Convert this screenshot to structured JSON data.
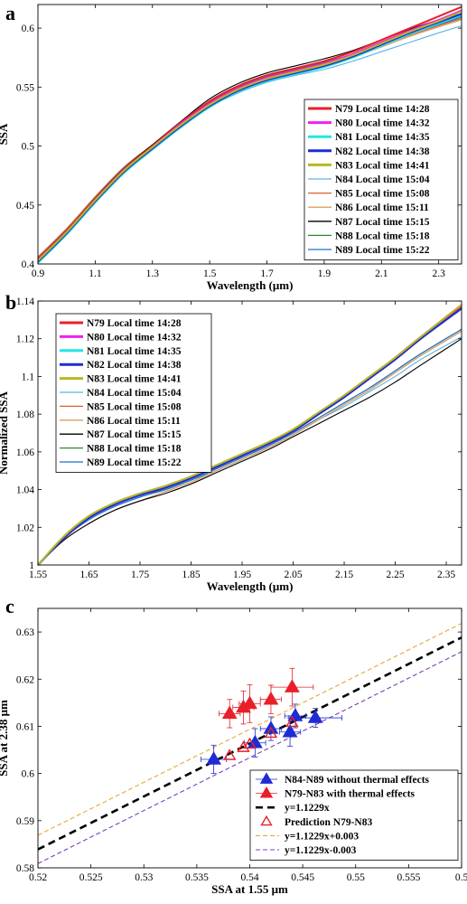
{
  "chart_data": [
    {
      "panel": "a",
      "type": "line",
      "xlabel": "Wavelength (μm)",
      "ylabel": "SSA",
      "xlim": [
        0.9,
        2.38
      ],
      "ylim": [
        0.4,
        0.62
      ],
      "xticks": [
        "0.9",
        "1.1",
        "1.3",
        "1.5",
        "1.7",
        "1.9",
        "2.1",
        "2.3"
      ],
      "yticks": [
        "0.4",
        "0.45",
        "0.5",
        "0.55",
        "0.6"
      ],
      "legend_position": "bottom-right",
      "x": [
        0.9,
        1.0,
        1.1,
        1.2,
        1.3,
        1.4,
        1.5,
        1.6,
        1.7,
        1.8,
        1.9,
        2.0,
        2.1,
        2.2,
        2.3,
        2.38
      ],
      "series": [
        {
          "name": "N79 Local time 14:28",
          "color": "#e8202a",
          "width": 3,
          "values": [
            0.404,
            0.428,
            0.455,
            0.48,
            0.5,
            0.52,
            0.538,
            0.551,
            0.56,
            0.566,
            0.572,
            0.58,
            0.59,
            0.6,
            0.61,
            0.618
          ]
        },
        {
          "name": "N80 Local time 14:32",
          "color": "#ee22ee",
          "width": 3,
          "values": [
            0.403,
            0.427,
            0.454,
            0.479,
            0.499,
            0.519,
            0.536,
            0.549,
            0.558,
            0.564,
            0.57,
            0.578,
            0.588,
            0.598,
            0.607,
            0.615
          ]
        },
        {
          "name": "N81 Local time 14:35",
          "color": "#22e6e6",
          "width": 3,
          "values": [
            0.401,
            0.425,
            0.452,
            0.477,
            0.497,
            0.516,
            0.533,
            0.546,
            0.555,
            0.561,
            0.567,
            0.575,
            0.585,
            0.595,
            0.604,
            0.611
          ]
        },
        {
          "name": "N82 Local time 14:38",
          "color": "#1f2bd4",
          "width": 3,
          "values": [
            0.402,
            0.426,
            0.453,
            0.478,
            0.498,
            0.517,
            0.534,
            0.547,
            0.556,
            0.562,
            0.568,
            0.576,
            0.586,
            0.596,
            0.605,
            0.612
          ]
        },
        {
          "name": "N83 Local time 14:41",
          "color": "#b8b820",
          "width": 3,
          "values": [
            0.403,
            0.427,
            0.454,
            0.479,
            0.499,
            0.518,
            0.535,
            0.548,
            0.557,
            0.563,
            0.569,
            0.577,
            0.587,
            0.597,
            0.606,
            0.614
          ]
        },
        {
          "name": "N84 Local time 15:04",
          "color": "#5ab4e6",
          "width": 1.3,
          "values": [
            0.404,
            0.428,
            0.455,
            0.48,
            0.499,
            0.517,
            0.533,
            0.545,
            0.554,
            0.56,
            0.565,
            0.572,
            0.58,
            0.588,
            0.596,
            0.602
          ]
        },
        {
          "name": "N85 Local time 15:08",
          "color": "#d9622a",
          "width": 1.3,
          "values": [
            0.406,
            0.43,
            0.457,
            0.482,
            0.501,
            0.519,
            0.536,
            0.548,
            0.557,
            0.563,
            0.569,
            0.576,
            0.585,
            0.594,
            0.602,
            0.608
          ]
        },
        {
          "name": "N86 Local time 15:11",
          "color": "#d9a066",
          "width": 1.3,
          "values": [
            0.405,
            0.429,
            0.456,
            0.481,
            0.5,
            0.518,
            0.535,
            0.547,
            0.556,
            0.562,
            0.568,
            0.575,
            0.584,
            0.593,
            0.601,
            0.607
          ]
        },
        {
          "name": "N87 Local time 15:15",
          "color": "#000000",
          "width": 1.3,
          "values": [
            0.403,
            0.428,
            0.456,
            0.481,
            0.501,
            0.521,
            0.54,
            0.553,
            0.562,
            0.568,
            0.574,
            0.581,
            0.59,
            0.599,
            0.607,
            0.612
          ]
        },
        {
          "name": "N88 Local time 15:18",
          "color": "#2e8b2e",
          "width": 1.3,
          "values": [
            0.404,
            0.428,
            0.455,
            0.48,
            0.5,
            0.519,
            0.537,
            0.55,
            0.559,
            0.565,
            0.571,
            0.578,
            0.587,
            0.596,
            0.604,
            0.61
          ]
        },
        {
          "name": "N89 Local time 15:22",
          "color": "#1f6fcc",
          "width": 1.3,
          "values": [
            0.405,
            0.429,
            0.456,
            0.481,
            0.5,
            0.518,
            0.535,
            0.548,
            0.557,
            0.563,
            0.569,
            0.577,
            0.586,
            0.595,
            0.603,
            0.609
          ]
        }
      ]
    },
    {
      "panel": "b",
      "type": "line",
      "xlabel": "Wavelength (μm)",
      "ylabel": "Normalized SSA",
      "xlim": [
        1.55,
        2.38
      ],
      "ylim": [
        1.0,
        1.14
      ],
      "xticks": [
        "1.55",
        "1.65",
        "1.75",
        "1.85",
        "1.95",
        "2.05",
        "2.15",
        "2.25",
        "2.35"
      ],
      "yticks": [
        "1",
        "1.02",
        "1.04",
        "1.06",
        "1.08",
        "1.1",
        "1.12",
        "1.14"
      ],
      "legend_position": "top-left",
      "x": [
        1.55,
        1.6,
        1.65,
        1.7,
        1.75,
        1.8,
        1.85,
        1.9,
        1.95,
        2.0,
        2.05,
        2.1,
        2.15,
        2.2,
        2.25,
        2.3,
        2.38
      ],
      "series": [
        {
          "name": "N79 Local time 14:28",
          "color": "#e8202a",
          "width": 3,
          "values": [
            1.0,
            1.014,
            1.025,
            1.032,
            1.037,
            1.041,
            1.046,
            1.052,
            1.058,
            1.064,
            1.071,
            1.08,
            1.089,
            1.099,
            1.109,
            1.12,
            1.137
          ]
        },
        {
          "name": "N80 Local time 14:32",
          "color": "#ee22ee",
          "width": 3,
          "values": [
            1.0,
            1.014,
            1.025,
            1.032,
            1.037,
            1.041,
            1.046,
            1.052,
            1.058,
            1.064,
            1.071,
            1.08,
            1.089,
            1.099,
            1.11,
            1.121,
            1.138
          ]
        },
        {
          "name": "N81 Local time 14:35",
          "color": "#22e6e6",
          "width": 3,
          "values": [
            1.0,
            1.014,
            1.025,
            1.032,
            1.037,
            1.041,
            1.046,
            1.052,
            1.058,
            1.064,
            1.071,
            1.08,
            1.089,
            1.099,
            1.109,
            1.12,
            1.136
          ]
        },
        {
          "name": "N82 Local time 14:38",
          "color": "#1f2bd4",
          "width": 3,
          "values": [
            1.0,
            1.014,
            1.025,
            1.032,
            1.037,
            1.041,
            1.046,
            1.052,
            1.058,
            1.064,
            1.071,
            1.08,
            1.089,
            1.099,
            1.109,
            1.12,
            1.136
          ]
        },
        {
          "name": "N83 Local time 14:41",
          "color": "#b8b820",
          "width": 3,
          "values": [
            1.0,
            1.015,
            1.026,
            1.033,
            1.038,
            1.042,
            1.047,
            1.053,
            1.059,
            1.065,
            1.072,
            1.081,
            1.09,
            1.1,
            1.11,
            1.121,
            1.138
          ]
        },
        {
          "name": "N84 Local time 15:04",
          "color": "#5ab4e6",
          "width": 1.3,
          "values": [
            1.0,
            1.014,
            1.024,
            1.031,
            1.036,
            1.04,
            1.045,
            1.05,
            1.056,
            1.062,
            1.069,
            1.077,
            1.084,
            1.092,
            1.1,
            1.109,
            1.121
          ]
        },
        {
          "name": "N85 Local time 15:08",
          "color": "#d9622a",
          "width": 1.3,
          "values": [
            1.0,
            1.013,
            1.022,
            1.029,
            1.034,
            1.039,
            1.044,
            1.05,
            1.056,
            1.062,
            1.069,
            1.077,
            1.085,
            1.093,
            1.102,
            1.111,
            1.124
          ]
        },
        {
          "name": "N86 Local time 15:11",
          "color": "#d9a066",
          "width": 1.3,
          "values": [
            1.0,
            1.013,
            1.022,
            1.029,
            1.034,
            1.039,
            1.044,
            1.05,
            1.056,
            1.062,
            1.069,
            1.077,
            1.085,
            1.093,
            1.102,
            1.111,
            1.124
          ]
        },
        {
          "name": "N87 Local time 15:15",
          "color": "#000000",
          "width": 1.3,
          "values": [
            1.0,
            1.013,
            1.022,
            1.029,
            1.034,
            1.038,
            1.043,
            1.049,
            1.055,
            1.061,
            1.068,
            1.075,
            1.082,
            1.089,
            1.097,
            1.106,
            1.12
          ]
        },
        {
          "name": "N88 Local time 15:18",
          "color": "#2e8b2e",
          "width": 1.3,
          "values": [
            1.0,
            1.014,
            1.025,
            1.032,
            1.037,
            1.04,
            1.045,
            1.051,
            1.057,
            1.063,
            1.07,
            1.078,
            1.086,
            1.094,
            1.103,
            1.112,
            1.125
          ]
        },
        {
          "name": "N89 Local time 15:22",
          "color": "#1f6fcc",
          "width": 1.3,
          "values": [
            1.0,
            1.014,
            1.024,
            1.031,
            1.036,
            1.04,
            1.045,
            1.051,
            1.057,
            1.063,
            1.07,
            1.078,
            1.086,
            1.094,
            1.103,
            1.112,
            1.125
          ]
        }
      ]
    },
    {
      "panel": "c",
      "type": "scatter",
      "xlabel": "SSA at 1.55 μm",
      "ylabel": "SSA at 2.38 μm",
      "xlim": [
        0.52,
        0.56
      ],
      "ylim": [
        0.58,
        0.635
      ],
      "xticks": [
        "0.52",
        "0.525",
        "0.53",
        "0.535",
        "0.54",
        "0.545",
        "0.55",
        "0.555",
        "0.5"
      ],
      "yticks": [
        "0.58",
        "0.59",
        "0.6",
        "0.61",
        "0.62",
        "0.63"
      ],
      "legend_position": "bottom-right",
      "scatter_series": [
        {
          "name": "N84-N89 without thermal effects",
          "marker": "filled-triangle",
          "color": "#1f2bd4",
          "points": [
            {
              "x": 0.5366,
              "y": 0.603,
              "xerr": 0.0012,
              "yerr": 0.003
            },
            {
              "x": 0.5405,
              "y": 0.6065,
              "xerr": 0.001,
              "yerr": 0.003
            },
            {
              "x": 0.542,
              "y": 0.6095,
              "xerr": 0.001,
              "yerr": 0.0025
            },
            {
              "x": 0.5438,
              "y": 0.6088,
              "xerr": 0.001,
              "yerr": 0.003
            },
            {
              "x": 0.5443,
              "y": 0.6122,
              "xerr": 0.001,
              "yerr": 0.0025
            },
            {
              "x": 0.5462,
              "y": 0.6118,
              "xerr": 0.0025,
              "yerr": 0.002
            }
          ]
        },
        {
          "name": "N79-N83 with thermal effects",
          "marker": "filled-triangle",
          "color": "#e8202a",
          "points": [
            {
              "x": 0.5381,
              "y": 0.6127,
              "xerr": 0.001,
              "yerr": 0.003
            },
            {
              "x": 0.5394,
              "y": 0.614,
              "xerr": 0.001,
              "yerr": 0.0035
            },
            {
              "x": 0.54,
              "y": 0.6148,
              "xerr": 0.001,
              "yerr": 0.004
            },
            {
              "x": 0.542,
              "y": 0.6157,
              "xerr": 0.001,
              "yerr": 0.003
            },
            {
              "x": 0.544,
              "y": 0.6183,
              "xerr": 0.002,
              "yerr": 0.004
            }
          ]
        },
        {
          "name": "Prediction N79-N83",
          "marker": "open-triangle",
          "color": "#e8202a",
          "points": [
            {
              "x": 0.5381,
              "y": 0.6038
            },
            {
              "x": 0.5394,
              "y": 0.6055
            },
            {
              "x": 0.54,
              "y": 0.6062
            },
            {
              "x": 0.542,
              "y": 0.6085
            },
            {
              "x": 0.544,
              "y": 0.6108
            }
          ]
        }
      ],
      "lines": [
        {
          "name": "y=1.1229x",
          "color": "#000000",
          "style": "bold-dashed",
          "slope": 1.1229,
          "intercept": 0
        },
        {
          "name": "y=1.1229x+0.003",
          "color": "#e8a838",
          "style": "dashed",
          "slope": 1.1229,
          "intercept": 0.003
        },
        {
          "name": "y=1.1229x-0.003",
          "color": "#7a3fb5",
          "style": "dashed",
          "slope": 1.1229,
          "intercept": -0.003
        }
      ],
      "legend_order": [
        "N84-N89 without thermal effects",
        "N79-N83 with thermal effects",
        "y=1.1229x",
        "Prediction N79-N83",
        "y=1.1229x+0.003",
        "y=1.1229x-0.003"
      ]
    }
  ]
}
